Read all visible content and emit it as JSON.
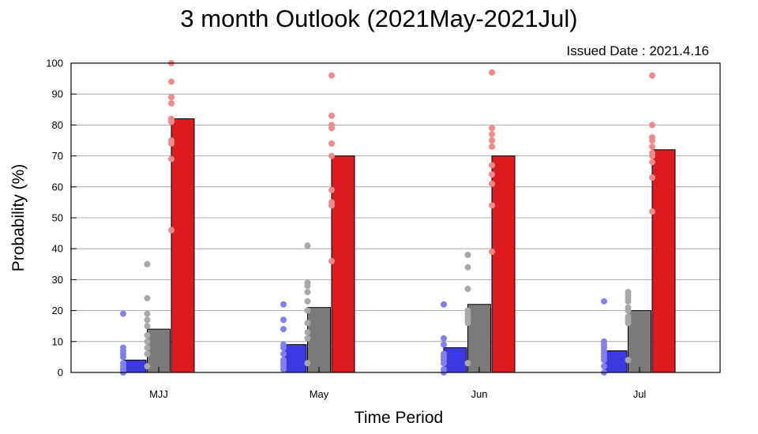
{
  "chart_data": {
    "type": "bar",
    "title": "3 month Outlook (2021May-2021Jul)",
    "issued_label": "Issued Date : 2021.4.16",
    "xlabel": "Time Period",
    "ylabel": "Probability (%)",
    "ylim": [
      0,
      100
    ],
    "yticks": [
      0,
      10,
      20,
      30,
      40,
      50,
      60,
      70,
      80,
      90,
      100
    ],
    "grid": true,
    "categories": [
      "MJJ",
      "May",
      "Jun",
      "Jul"
    ],
    "series": [
      {
        "color": "#3a3ae0",
        "dot_color": "#8080f0",
        "values": [
          4,
          9,
          8,
          7
        ],
        "members": [
          [
            19,
            8,
            7,
            6,
            5,
            3,
            2,
            1,
            0,
            0
          ],
          [
            22,
            17,
            14,
            9,
            8,
            6,
            4,
            3,
            2,
            1
          ],
          [
            22,
            11,
            9,
            6,
            5,
            4,
            3,
            1,
            0
          ],
          [
            23,
            10,
            9,
            8,
            7,
            6,
            5,
            4,
            2,
            0
          ]
        ]
      },
      {
        "color": "#7a7a7a",
        "dot_color": "#a8a8a8",
        "values": [
          14,
          21,
          22,
          20
        ],
        "members": [
          [
            35,
            24,
            19,
            17,
            15,
            12,
            10,
            8,
            6,
            2
          ],
          [
            41,
            29,
            28,
            26,
            23,
            20,
            16,
            13,
            11,
            3
          ],
          [
            38,
            34,
            27,
            20,
            19,
            18,
            17,
            16,
            3
          ],
          [
            26,
            25,
            24,
            23,
            21,
            20,
            18,
            17,
            16,
            4
          ]
        ]
      },
      {
        "color": "#dc1c1c",
        "dot_color": "#f08a8a",
        "values": [
          82,
          70,
          70,
          72
        ],
        "members": [
          [
            100,
            94,
            89,
            87,
            82,
            81,
            75,
            74,
            69,
            46
          ],
          [
            96,
            83,
            80,
            79,
            74,
            70,
            59,
            55,
            54,
            36
          ],
          [
            97,
            79,
            77,
            75,
            73,
            67,
            64,
            61,
            54,
            39
          ],
          [
            96,
            80,
            76,
            75,
            73,
            71,
            70,
            68,
            63,
            52
          ]
        ]
      }
    ]
  }
}
